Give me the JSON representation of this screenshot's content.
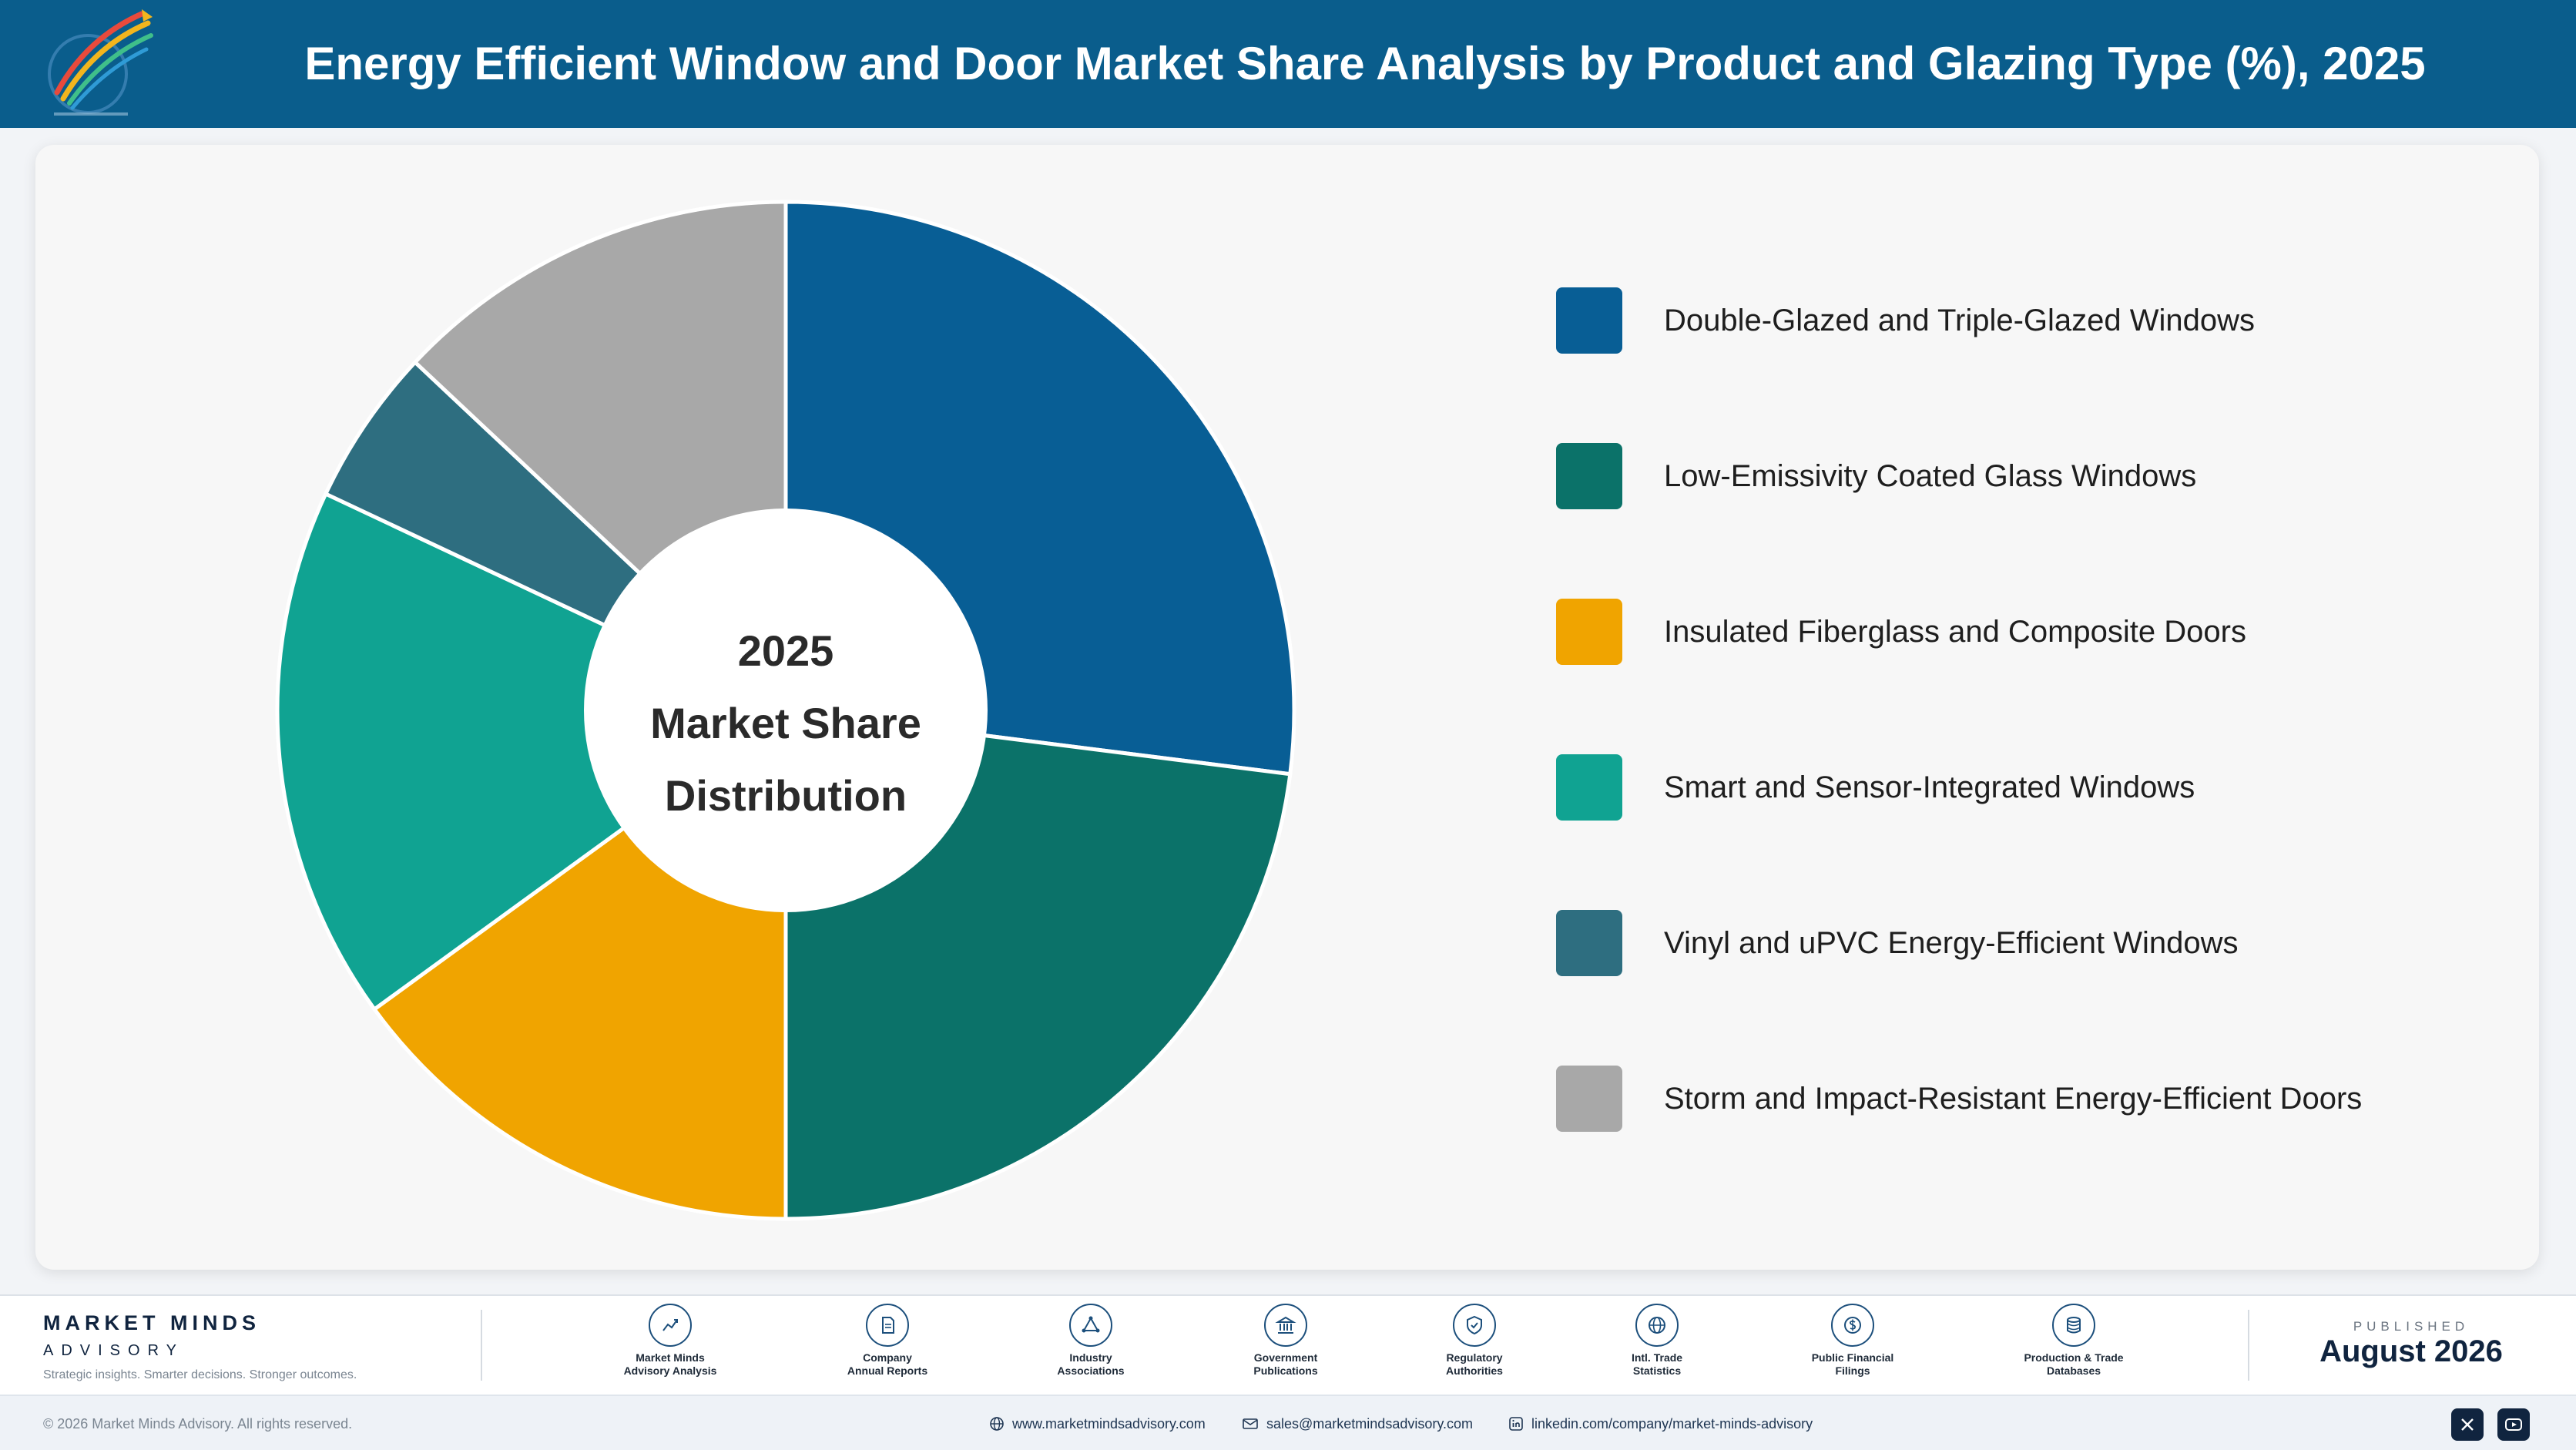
{
  "header": {
    "title": "Energy Efficient Window and Door Market Share Analysis by Product and Glazing Type (%), 2025"
  },
  "chart_data": {
    "type": "pie",
    "donut": true,
    "title": "Energy Efficient Window and Door Market Share Analysis by Product and Glazing Type (%), 2025",
    "center_label": [
      "2025",
      "Market Share",
      "Distribution"
    ],
    "categories": [
      "Double-Glazed and Triple-Glazed Windows",
      "Low-Emissivity Coated Glass Windows",
      "Insulated Fiberglass and Composite Doors",
      "Smart and Sensor-Integrated Windows",
      "Vinyl and uPVC Energy-Efficient Windows",
      "Storm and Impact-Resistant Energy-Efficient Doors"
    ],
    "values": [
      27,
      23,
      15,
      17,
      5,
      13
    ],
    "colors": [
      "#085e95",
      "#0b7269",
      "#f0a400",
      "#10a392",
      "#2e6e80",
      "#a8a8a8"
    ],
    "legend": "right"
  },
  "footer": {
    "brand_name": "MARKET MINDS",
    "brand_sub": "ADVISORY",
    "tagline": "Strategic insights. Smarter decisions. Stronger outcomes.",
    "sources": [
      {
        "line1": "Market Minds",
        "line2": "Advisory Analysis",
        "icon": "trend-line-icon"
      },
      {
        "line1": "Company",
        "line2": "Annual Reports",
        "icon": "document-icon"
      },
      {
        "line1": "Industry",
        "line2": "Associations",
        "icon": "network-icon"
      },
      {
        "line1": "Government",
        "line2": "Publications",
        "icon": "government-building-icon"
      },
      {
        "line1": "Regulatory",
        "line2": "Authorities",
        "icon": "shield-check-icon"
      },
      {
        "line1": "Intl. Trade",
        "line2": "Statistics",
        "icon": "globe-icon"
      },
      {
        "line1": "Public Financial",
        "line2": "Filings",
        "icon": "dollar-coin-icon"
      },
      {
        "line1": "Production & Trade",
        "line2": "Databases",
        "icon": "database-icon"
      }
    ],
    "published_caption": "PUBLISHED",
    "published_date": "August 2026",
    "copyright": "© 2026 Market Minds Advisory. All rights reserved.",
    "website": "www.marketmindsadvisory.com",
    "email": "sales@marketmindsadvisory.com",
    "linkedin": "linkedin.com/company/market-minds-advisory"
  }
}
